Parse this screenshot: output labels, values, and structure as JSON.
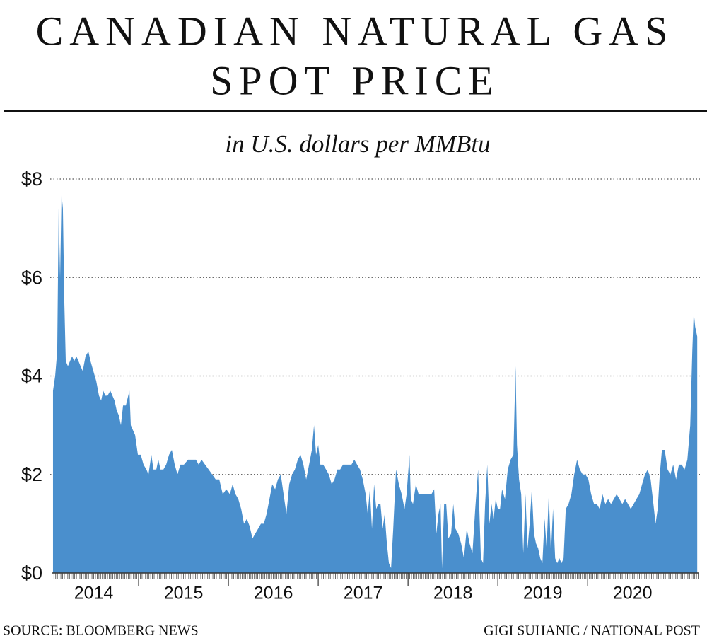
{
  "chart_data": {
    "type": "area",
    "title": [
      "CANADIAN NATURAL GAS",
      "SPOT PRICE"
    ],
    "subtitle": "in U.S. dollars per MMBtu",
    "source": "SOURCE: BLOOMBERG NEWS",
    "credit": "GIGI SUHANIC / NATIONAL POST",
    "color": "#4a8fcd",
    "grid": true,
    "xlim": [
      2014,
      2021.25
    ],
    "xticks": [
      2014,
      2015,
      2016,
      2017,
      2018,
      2019,
      2020
    ],
    "ylim": [
      0,
      8
    ],
    "yticks": [
      {
        "value": 0,
        "label": "$0"
      },
      {
        "value": 2,
        "label": "$2"
      },
      {
        "value": 4,
        "label": "$4"
      },
      {
        "value": 6,
        "label": "$6"
      },
      {
        "value": 8,
        "label": "$8"
      }
    ],
    "x": [
      2014.047,
      2014.071,
      2014.094,
      2014.11,
      2014.126,
      2014.142,
      2014.157,
      2014.173,
      2014.189,
      2014.213,
      2014.236,
      2014.26,
      2014.283,
      2014.307,
      2014.331,
      2014.354,
      2014.378,
      2014.409,
      2014.441,
      2014.465,
      2014.496,
      2014.528,
      2014.559,
      2014.583,
      2014.606,
      2014.63,
      2014.654,
      2014.685,
      2014.709,
      2014.732,
      2014.756,
      2014.78,
      2014.803,
      2014.827,
      2014.858,
      2014.898,
      2014.913,
      2014.937,
      2014.961,
      2014.992,
      2015.024,
      2015.055,
      2015.087,
      2015.11,
      2015.142,
      2015.165,
      2015.197,
      2015.22,
      2015.244,
      2015.276,
      2015.307,
      2015.339,
      2015.37,
      2015.402,
      2015.433,
      2015.465,
      2015.504,
      2015.551,
      2015.598,
      2015.638,
      2015.669,
      2015.701,
      2015.74,
      2015.78,
      2015.819,
      2015.858,
      2015.898,
      2015.937,
      2015.976,
      2016.016,
      2016.047,
      2016.079,
      2016.11,
      2016.142,
      2016.173,
      2016.205,
      2016.236,
      2016.268,
      2016.299,
      2016.331,
      2016.362,
      2016.394,
      2016.425,
      2016.457,
      2016.488,
      2016.52,
      2016.551,
      2016.583,
      2016.614,
      2016.646,
      2016.677,
      2016.709,
      2016.74,
      2016.772,
      2016.803,
      2016.835,
      2016.866,
      2016.898,
      2016.929,
      2016.953,
      2016.976,
      2017.0,
      2017.024,
      2017.055,
      2017.087,
      2017.118,
      2017.15,
      2017.181,
      2017.213,
      2017.244,
      2017.276,
      2017.307,
      2017.339,
      2017.37,
      2017.402,
      2017.433,
      2017.465,
      2017.496,
      2017.528,
      2017.551,
      2017.575,
      2017.598,
      2017.622,
      2017.646,
      2017.669,
      2017.693,
      2017.717,
      2017.74,
      2017.764,
      2017.787,
      2017.811,
      2017.835,
      2017.866,
      2017.898,
      2017.929,
      2017.961,
      2017.984,
      2018.016,
      2018.031,
      2018.055,
      2018.087,
      2018.118,
      2018.15,
      2018.181,
      2018.22,
      2018.26,
      2018.291,
      2018.315,
      2018.339,
      2018.362,
      2018.378,
      2018.402,
      2018.425,
      2018.449,
      2018.48,
      2018.504,
      2018.528,
      2018.559,
      2018.591,
      2018.622,
      2018.654,
      2018.685,
      2018.717,
      2018.748,
      2018.78,
      2018.811,
      2018.835,
      2018.858,
      2018.882,
      2018.906,
      2018.929,
      2018.953,
      2018.976,
      2019.0,
      2019.024,
      2019.047,
      2019.079,
      2019.11,
      2019.142,
      2019.173,
      2019.197,
      2019.213,
      2019.236,
      2019.26,
      2019.283,
      2019.307,
      2019.331,
      2019.354,
      2019.378,
      2019.402,
      2019.425,
      2019.449,
      2019.472,
      2019.496,
      2019.52,
      2019.543,
      2019.567,
      2019.591,
      2019.614,
      2019.638,
      2019.661,
      2019.685,
      2019.709,
      2019.732,
      2019.756,
      2019.787,
      2019.819,
      2019.85,
      2019.882,
      2019.913,
      2019.945,
      2019.976,
      2020.008,
      2020.039,
      2020.071,
      2020.102,
      2020.134,
      2020.165,
      2020.197,
      2020.228,
      2020.26,
      2020.291,
      2020.323,
      2020.354,
      2020.386,
      2020.417,
      2020.449,
      2020.48,
      2020.512,
      2020.543,
      2020.575,
      2020.606,
      2020.638,
      2020.669,
      2020.701,
      2020.732,
      2020.756,
      2020.78,
      2020.803,
      2020.827,
      2020.858,
      2020.89,
      2020.921,
      2020.953,
      2020.984,
      2021.016,
      2021.047,
      2021.079,
      2021.11,
      2021.142,
      2021.165,
      2021.181,
      2021.197,
      2021.22
    ],
    "values": [
      3.7,
      4.0,
      4.5,
      7.4,
      6.0,
      7.7,
      7.4,
      5.5,
      4.3,
      4.2,
      4.3,
      4.4,
      4.3,
      4.4,
      4.3,
      4.2,
      4.1,
      4.4,
      4.5,
      4.3,
      4.1,
      3.9,
      3.6,
      3.5,
      3.7,
      3.6,
      3.6,
      3.7,
      3.6,
      3.5,
      3.3,
      3.2,
      3.0,
      3.4,
      3.4,
      3.7,
      3.0,
      2.9,
      2.8,
      2.4,
      2.4,
      2.2,
      2.1,
      2.0,
      2.4,
      2.1,
      2.1,
      2.3,
      2.1,
      2.1,
      2.2,
      2.4,
      2.5,
      2.2,
      2.0,
      2.2,
      2.2,
      2.3,
      2.3,
      2.3,
      2.2,
      2.3,
      2.2,
      2.1,
      2.0,
      1.9,
      1.9,
      1.6,
      1.7,
      1.6,
      1.8,
      1.6,
      1.5,
      1.3,
      1.0,
      1.1,
      0.95,
      0.7,
      0.8,
      0.9,
      1.0,
      1.0,
      1.2,
      1.5,
      1.8,
      1.7,
      1.9,
      2.0,
      1.6,
      1.2,
      1.8,
      2.0,
      2.1,
      2.3,
      2.4,
      2.2,
      1.9,
      2.2,
      2.5,
      3.0,
      2.4,
      2.6,
      2.2,
      2.2,
      2.1,
      2.0,
      1.8,
      1.9,
      2.1,
      2.1,
      2.2,
      2.2,
      2.2,
      2.2,
      2.3,
      2.2,
      2.1,
      1.9,
      1.6,
      1.2,
      1.7,
      0.9,
      1.8,
      1.3,
      1.4,
      1.4,
      0.9,
      1.2,
      0.6,
      0.2,
      0.1,
      0.9,
      2.1,
      1.8,
      1.6,
      1.3,
      1.6,
      2.4,
      1.5,
      1.4,
      1.8,
      1.6,
      1.6,
      1.6,
      1.6,
      1.6,
      1.7,
      0.8,
      1.2,
      1.4,
      0.1,
      1.4,
      1.4,
      0.7,
      0.8,
      1.4,
      0.9,
      0.8,
      0.6,
      0.3,
      0.9,
      0.6,
      0.4,
      1.3,
      2.1,
      0.3,
      0.2,
      1.4,
      2.2,
      1.0,
      1.4,
      1.1,
      1.5,
      1.3,
      1.3,
      1.7,
      1.5,
      2.1,
      2.3,
      2.4,
      4.2,
      2.6,
      1.9,
      1.6,
      0.4,
      1.6,
      0.5,
      1.0,
      1.7,
      0.8,
      0.6,
      0.5,
      0.3,
      0.2,
      1.1,
      0.5,
      1.6,
      0.4,
      1.3,
      0.3,
      0.2,
      0.3,
      0.2,
      0.3,
      1.3,
      1.4,
      1.6,
      2.0,
      2.3,
      2.1,
      2.0,
      2.0,
      1.9,
      1.6,
      1.4,
      1.4,
      1.3,
      1.6,
      1.4,
      1.5,
      1.4,
      1.5,
      1.6,
      1.5,
      1.4,
      1.5,
      1.4,
      1.3,
      1.4,
      1.5,
      1.6,
      1.8,
      2.0,
      2.1,
      1.9,
      1.4,
      1.0,
      1.3,
      2.0,
      2.5,
      2.5,
      2.1,
      2.0,
      2.2,
      1.9,
      2.2,
      2.2,
      2.1,
      2.3,
      3.0,
      4.5,
      5.3,
      5.0,
      4.8
    ]
  }
}
